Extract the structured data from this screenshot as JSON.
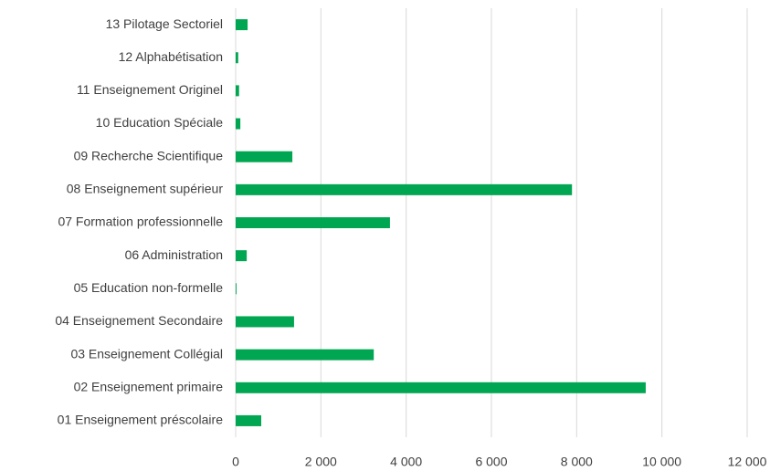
{
  "chart_data": {
    "type": "barh",
    "categories": [
      "13 Pilotage Sectoriel",
      "12 Alphabétisation",
      "11 Enseignement Originel",
      "10 Education Spéciale",
      "09 Recherche Scientifique",
      "08 Enseignement supérieur",
      "07 Formation professionnelle",
      "06 Administration",
      "05 Education non-formelle",
      "04 Enseignement Secondaire",
      "03 Enseignement Collégial",
      "02 Enseignement primaire",
      "01 Enseignement préscolaire"
    ],
    "values": [
      280,
      60,
      80,
      110,
      1330,
      7890,
      3620,
      260,
      20,
      1370,
      3240,
      9620,
      600
    ],
    "color": "#00a651",
    "xlim": [
      0,
      12000
    ],
    "xticks": [
      0,
      {
        "value": 2000,
        "label": "2 000"
      },
      {
        "value": 4000,
        "label": "4 000"
      },
      {
        "value": 6000,
        "label": "6 000"
      },
      {
        "value": 8000,
        "label": "8 000"
      },
      {
        "value": 10000,
        "label": "10 000"
      },
      {
        "value": 12000,
        "label": "12 000"
      }
    ],
    "grid": true
  }
}
